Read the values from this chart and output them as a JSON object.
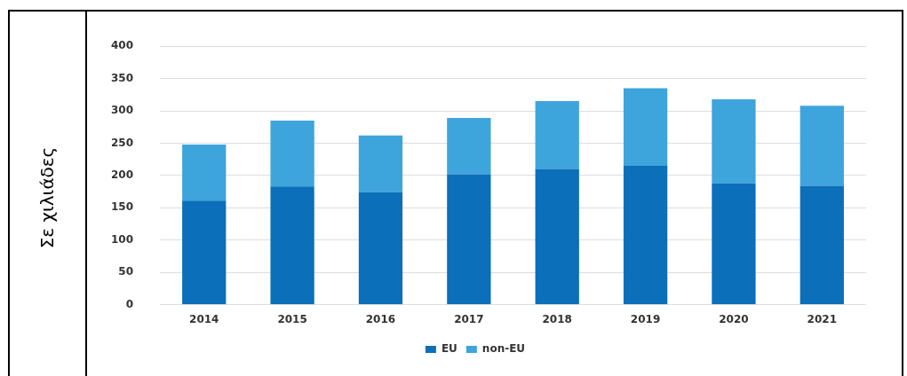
{
  "chart_data": {
    "type": "bar",
    "ylabel": "Σε χιλιάδες",
    "categories": [
      "2014",
      "2015",
      "2016",
      "2017",
      "2018",
      "2019",
      "2020",
      "2021"
    ],
    "stacked": true,
    "series": [
      {
        "name": "EU",
        "color": "#0b6fba",
        "values": [
          161,
          183,
          174,
          202,
          210,
          215,
          188,
          184
        ]
      },
      {
        "name": "non-EU",
        "color": "#3ea4dc",
        "values": [
          87,
          102,
          88,
          87,
          105,
          120,
          130,
          124
        ]
      }
    ],
    "ylim": [
      0,
      400
    ],
    "yticks": [
      0,
      50,
      100,
      150,
      200,
      250,
      300,
      350,
      400
    ],
    "grid": "y",
    "legend": "bottom"
  }
}
